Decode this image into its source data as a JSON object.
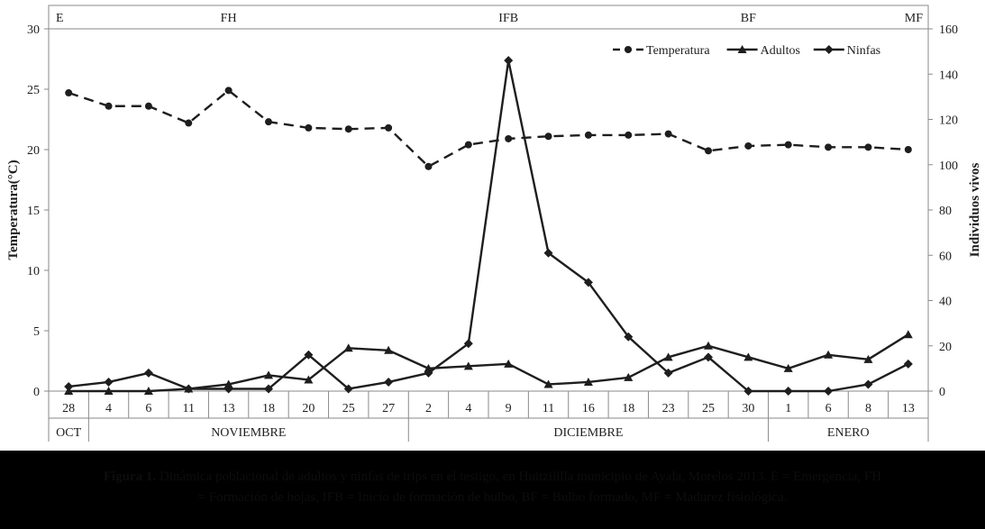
{
  "chart_data": {
    "type": "line",
    "categories": [
      "28",
      "4",
      "6",
      "11",
      "13",
      "18",
      "20",
      "25",
      "27",
      "2",
      "4",
      "9",
      "11",
      "16",
      "18",
      "23",
      "25",
      "30",
      "1",
      "6",
      "8",
      "13"
    ],
    "months": [
      {
        "label": "OCT",
        "from": 0,
        "to": 0
      },
      {
        "label": "NOVIEMBRE",
        "from": 1,
        "to": 8
      },
      {
        "label": "DICIEMBRE",
        "from": 9,
        "to": 17
      },
      {
        "label": "ENERO",
        "from": 18,
        "to": 21
      }
    ],
    "stages": [
      {
        "label": "E",
        "at": 0
      },
      {
        "label": "FH",
        "at": 4
      },
      {
        "label": "IFB",
        "at": 11
      },
      {
        "label": "BF",
        "at": 17
      },
      {
        "label": "MF",
        "at": 21
      }
    ],
    "ylabel_left": "Temperatura(°C)",
    "ylabel_right": "Individuos vivos",
    "ylim_left": [
      0,
      30
    ],
    "yticks_left": [
      0,
      5,
      10,
      15,
      20,
      25,
      30
    ],
    "ylim_right": [
      0,
      160
    ],
    "yticks_right": [
      0,
      20,
      40,
      60,
      80,
      100,
      120,
      140,
      160
    ],
    "legend_position": "top-right",
    "series": [
      {
        "name": "Temperatura",
        "axis": "left",
        "style": "dashed",
        "marker": "circle",
        "values": [
          24.7,
          23.6,
          23.6,
          22.2,
          24.9,
          22.3,
          21.8,
          21.7,
          21.8,
          18.6,
          20.4,
          20.9,
          21.1,
          21.2,
          21.2,
          21.3,
          19.9,
          20.3,
          20.4,
          20.2,
          20.2,
          20.0
        ]
      },
      {
        "name": "Adultos",
        "axis": "right",
        "style": "solid",
        "marker": "triangle",
        "values": [
          0,
          0,
          0,
          1,
          3,
          7,
          5,
          19,
          18,
          10,
          11,
          12,
          3,
          4,
          6,
          15,
          20,
          15,
          10,
          16,
          14,
          25
        ]
      },
      {
        "name": "Ninfas",
        "axis": "right",
        "style": "solid",
        "marker": "diamond",
        "values": [
          2,
          4,
          8,
          1,
          1,
          1,
          16,
          1,
          4,
          8,
          21,
          146,
          61,
          48,
          24,
          8,
          15,
          0,
          0,
          0,
          3,
          12
        ]
      }
    ]
  },
  "caption": {
    "bold": "Figura 1.",
    "line1": " Dinámica poblacional de adultos y ninfas de trips en el testigo, en Huitzililla municipio de Ayala, Morelos 2013. E = Emergencia, FH",
    "line2": "= Formación de hojas, IFB = Inicio de formación de bulbo, BF = Bulbo formado, MF = Madurez fisiológica."
  }
}
